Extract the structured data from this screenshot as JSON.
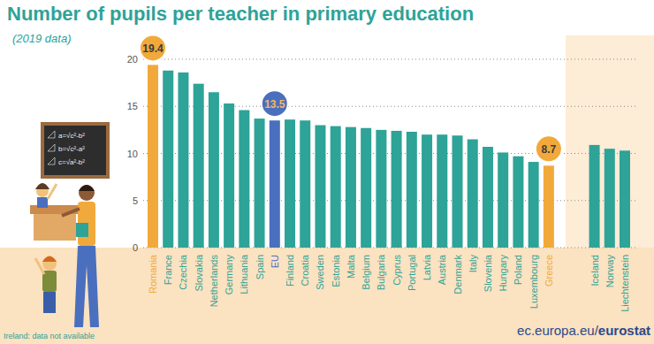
{
  "chart_data": {
    "type": "bar",
    "title": "Number of pupils per teacher in primary education",
    "subtitle": "(2019 data)",
    "categories": [
      "Romania",
      "France",
      "Czechia",
      "Slovakia",
      "Netherlands",
      "Germany",
      "Lithuania",
      "Spain",
      "EU",
      "Finland",
      "Croatia",
      "Sweden",
      "Estonia",
      "Malta",
      "Belgium",
      "Bulgaria",
      "Cyprus",
      "Portugal",
      "Latvia",
      "Austria",
      "Denmark",
      "Italy",
      "Slovenia",
      "Hungary",
      "Poland",
      "Luxembourg",
      "Greece",
      null,
      null,
      "Iceland",
      "Norway",
      "Liechtenstein"
    ],
    "values": [
      19.4,
      18.8,
      18.6,
      17.4,
      16.5,
      15.3,
      14.6,
      13.7,
      13.5,
      13.6,
      13.5,
      13.0,
      12.9,
      12.8,
      12.7,
      12.5,
      12.4,
      12.3,
      12.0,
      12.0,
      11.9,
      11.5,
      10.7,
      10.1,
      9.7,
      9.1,
      8.7,
      null,
      null,
      10.9,
      10.5,
      10.3
    ],
    "value_labels": [
      "19.4",
      null,
      null,
      null,
      null,
      null,
      null,
      null,
      "13.5",
      null,
      null,
      null,
      null,
      null,
      null,
      null,
      null,
      null,
      null,
      null,
      null,
      null,
      null,
      null,
      null,
      null,
      "8.7",
      null,
      null,
      null,
      null,
      null
    ],
    "colors": [
      "#f2a93b",
      "#2ea397",
      "#2ea397",
      "#2ea397",
      "#2ea397",
      "#2ea397",
      "#2ea397",
      "#2ea397",
      "#4a6fbe",
      "#2ea397",
      "#2ea397",
      "#2ea397",
      "#2ea397",
      "#2ea397",
      "#2ea397",
      "#2ea397",
      "#2ea397",
      "#2ea397",
      "#2ea397",
      "#2ea397",
      "#2ea397",
      "#2ea397",
      "#2ea397",
      "#2ea397",
      "#2ea397",
      "#2ea397",
      "#f2a93b",
      null,
      null,
      "#2ea397",
      "#2ea397",
      "#2ea397"
    ],
    "ylim": [
      0,
      20
    ],
    "yticks": [
      0,
      5,
      10,
      15,
      20
    ],
    "grid": true,
    "data_labels": true,
    "footnote": "Ireland: data not available",
    "source": "ec.europa.eu/eurostat",
    "board_formulas": [
      "a=√c²-b²",
      "b=√c²-a²",
      "c=√a²-b²"
    ]
  }
}
